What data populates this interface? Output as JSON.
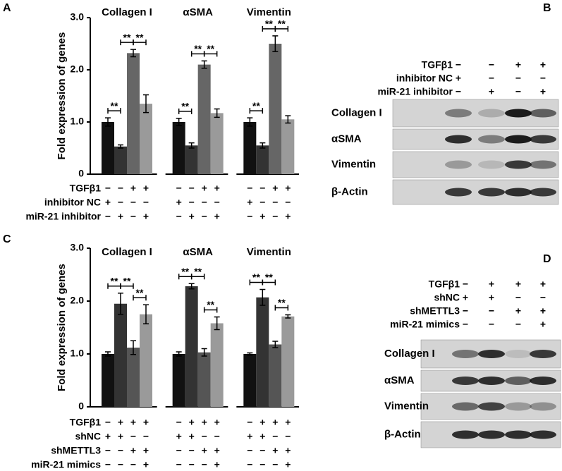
{
  "panel_labels": [
    "A",
    "B",
    "C",
    "D"
  ],
  "chart_data": [
    {
      "type": "bar",
      "ylabel": "Fold expression of genes",
      "categories": [
        "Collagen I",
        "αSMA",
        "Vimentin"
      ],
      "ylim": [
        0,
        3
      ],
      "yticks": [
        0,
        {
          "value": 1,
          "label": "1.0"
        },
        {
          "value": 2,
          "label": "2.0"
        },
        {
          "value": 3,
          "label": "3.0"
        }
      ],
      "series": [
        {
          "color": "#111111",
          "values": [
            1.0,
            1.0,
            1.0
          ],
          "errors": [
            0.08,
            0.07,
            0.08
          ]
        },
        {
          "color": "#333333",
          "values": [
            0.53,
            0.55,
            0.55
          ],
          "errors": [
            0.03,
            0.05,
            0.05
          ]
        },
        {
          "color": "#666666",
          "values": [
            2.32,
            2.1,
            2.5
          ],
          "errors": [
            0.07,
            0.07,
            0.15
          ]
        },
        {
          "color": "#9a9a9a",
          "values": [
            1.35,
            1.17,
            1.05
          ],
          "errors": [
            0.17,
            0.08,
            0.07
          ]
        }
      ],
      "annotations": [
        {
          "text": "**",
          "group": 0,
          "bars": [
            0,
            1
          ]
        },
        {
          "text": "**",
          "group": 0,
          "bars": [
            1,
            2
          ]
        },
        {
          "text": "**",
          "group": 0,
          "bars": [
            2,
            3
          ]
        },
        {
          "text": "**",
          "group": 1,
          "bars": [
            0,
            1
          ]
        },
        {
          "text": "**",
          "group": 1,
          "bars": [
            1,
            2
          ]
        },
        {
          "text": "**",
          "group": 1,
          "bars": [
            2,
            3
          ]
        },
        {
          "text": "**",
          "group": 2,
          "bars": [
            0,
            1
          ]
        },
        {
          "text": "**",
          "group": 2,
          "bars": [
            1,
            2
          ]
        },
        {
          "text": "**",
          "group": 2,
          "bars": [
            2,
            3
          ]
        }
      ],
      "conditions": [
        {
          "label": "TGFβ1",
          "signs": [
            "−",
            "−",
            "+",
            "+",
            "−",
            "−",
            "+",
            "+",
            "−",
            "−",
            "+",
            "+"
          ]
        },
        {
          "label": "inhibitor NC",
          "signs": [
            "+",
            "−",
            "−",
            "−",
            "+",
            "−",
            "−",
            "−",
            "+",
            "−",
            "−",
            "−"
          ]
        },
        {
          "label": "miR-21 inhibitor",
          "signs": [
            "−",
            "+",
            "−",
            "+",
            "−",
            "+",
            "−",
            "+",
            "−",
            "+",
            "−",
            "+"
          ]
        }
      ]
    },
    {
      "type": "bar",
      "ylabel": "Fold expression of genes",
      "categories": [
        "Collagen I",
        "αSMA",
        "Vimentin"
      ],
      "ylim": [
        0,
        3
      ],
      "yticks": [
        0,
        {
          "value": 1,
          "label": "1.0"
        },
        {
          "value": 2,
          "label": "2.0"
        },
        {
          "value": 3,
          "label": "3.0"
        }
      ],
      "series": [
        {
          "color": "#111111",
          "values": [
            1.0,
            1.0,
            1.0
          ],
          "errors": [
            0.04,
            0.04,
            0.02
          ]
        },
        {
          "color": "#333333",
          "values": [
            1.95,
            2.28,
            2.07
          ],
          "errors": [
            0.2,
            0.05,
            0.15
          ]
        },
        {
          "color": "#555555",
          "values": [
            1.12,
            1.03,
            1.18
          ],
          "errors": [
            0.13,
            0.07,
            0.06
          ]
        },
        {
          "color": "#9a9a9a",
          "values": [
            1.75,
            1.58,
            1.71
          ],
          "errors": [
            0.18,
            0.12,
            0.03
          ]
        }
      ],
      "annotations": [
        {
          "text": "**",
          "group": 0,
          "bars": [
            0,
            1
          ]
        },
        {
          "text": "**",
          "group": 0,
          "bars": [
            1,
            2
          ]
        },
        {
          "text": "**",
          "group": 0,
          "bars": [
            2,
            3
          ]
        },
        {
          "text": "**",
          "group": 1,
          "bars": [
            0,
            1
          ]
        },
        {
          "text": "**",
          "group": 1,
          "bars": [
            1,
            2
          ]
        },
        {
          "text": "**",
          "group": 1,
          "bars": [
            2,
            3
          ]
        },
        {
          "text": "**",
          "group": 2,
          "bars": [
            0,
            1
          ]
        },
        {
          "text": "**",
          "group": 2,
          "bars": [
            1,
            2
          ]
        },
        {
          "text": "**",
          "group": 2,
          "bars": [
            2,
            3
          ]
        }
      ],
      "conditions": [
        {
          "label": "TGFβ1",
          "signs": [
            "−",
            "+",
            "+",
            "+",
            "−",
            "+",
            "+",
            "+",
            "−",
            "+",
            "+",
            "+"
          ]
        },
        {
          "label": "shNC",
          "signs": [
            "+",
            "+",
            "−",
            "−",
            "+",
            "+",
            "−",
            "−",
            "+",
            "+",
            "−",
            "−"
          ]
        },
        {
          "label": "shMETTL3",
          "signs": [
            "−",
            "−",
            "+",
            "+",
            "−",
            "−",
            "+",
            "+",
            "−",
            "−",
            "+",
            "+"
          ]
        },
        {
          "label": "miR-21 mimics",
          "signs": [
            "−",
            "−",
            "−",
            "+",
            "−",
            "−",
            "−",
            "+",
            "−",
            "−",
            "−",
            "+"
          ]
        }
      ]
    }
  ],
  "blots": [
    {
      "conditions": [
        {
          "label": "TGFβ1",
          "signs": [
            "−",
            "−",
            "+",
            "+"
          ]
        },
        {
          "label": "inhibitor NC",
          "signs": [
            "+",
            "−",
            "−",
            "−"
          ]
        },
        {
          "label": "miR-21 inhibitor",
          "signs": [
            "−",
            "+",
            "−",
            "+"
          ]
        }
      ],
      "bands": [
        "Collagen I",
        "αSMA",
        "Vimentin",
        "β-Actin"
      ]
    },
    {
      "conditions": [
        {
          "label": "TGFβ1",
          "signs": [
            "−",
            "+",
            "+",
            "+"
          ]
        },
        {
          "label": "shNC",
          "signs": [
            "+",
            "+",
            "−",
            "−"
          ]
        },
        {
          "label": "shMETTL3",
          "signs": [
            "−",
            "−",
            "+",
            "+"
          ]
        },
        {
          "label": "miR-21 mimics",
          "signs": [
            "−",
            "−",
            "−",
            "+"
          ]
        }
      ],
      "bands": [
        "Collagen I",
        "αSMA",
        "Vimentin",
        "β-Actin"
      ]
    }
  ]
}
